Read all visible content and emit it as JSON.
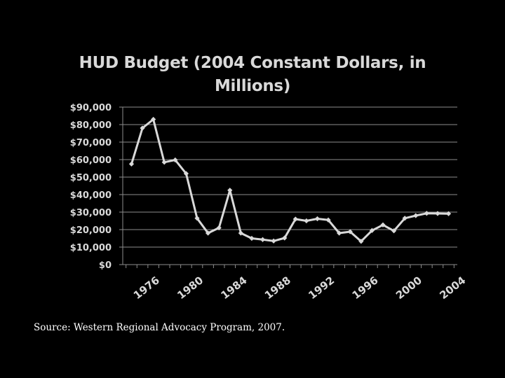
{
  "chart_data": {
    "type": "line",
    "title": "HUD Budget (2004 Constant Dollars, in Millions)",
    "xlabel": "",
    "ylabel": "",
    "x": [
      1976,
      1977,
      1978,
      1979,
      1980,
      1981,
      1982,
      1983,
      1984,
      1985,
      1986,
      1987,
      1988,
      1989,
      1990,
      1991,
      1992,
      1993,
      1994,
      1995,
      1996,
      1997,
      1998,
      1999,
      2000,
      2001,
      2002,
      2003,
      2004,
      2005
    ],
    "series": [
      {
        "values": [
          57500,
          78000,
          83000,
          58500,
          59800,
          52000,
          26500,
          18000,
          21000,
          42500,
          18000,
          15000,
          14300,
          13500,
          15200,
          26000,
          25000,
          26200,
          25500,
          18000,
          18800,
          13300,
          19500,
          22700,
          19300,
          26500,
          28000,
          29300,
          29200,
          29100
        ]
      }
    ],
    "ylim": [
      0,
      90000
    ],
    "y_ticks": [
      0,
      10000,
      20000,
      30000,
      40000,
      50000,
      60000,
      70000,
      80000,
      90000
    ],
    "y_tick_labels": [
      "$0",
      "$10,000",
      "$20,000",
      "$30,000",
      "$40,000",
      "$50,000",
      "$60,000",
      "$70,000",
      "$80,000",
      "$90,000"
    ],
    "x_ticks": [
      1976,
      1980,
      1984,
      1988,
      1992,
      1996,
      2000,
      2004
    ],
    "x_tick_labels": [
      "1976",
      "1980",
      "1984",
      "1988",
      "1992",
      "1996",
      "2000",
      "2004"
    ],
    "grid": true,
    "legend": "none",
    "colors": {
      "background": "#000000",
      "line": "#d9d9d9",
      "grid": "#8c8c8c",
      "text": "#d9d9d9"
    }
  },
  "source": "Source: Western Regional Advocacy Program, 2007."
}
